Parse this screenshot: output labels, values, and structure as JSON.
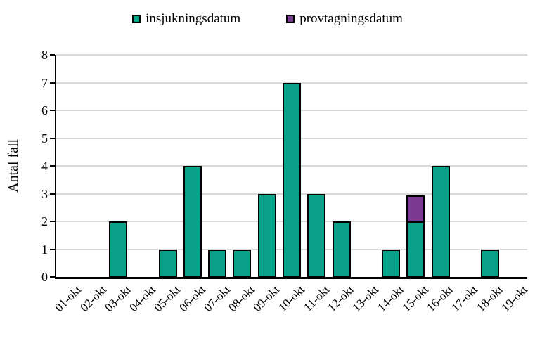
{
  "chart_data": {
    "type": "bar",
    "stacked": true,
    "title": "",
    "xlabel": "",
    "ylabel": "Antal fall",
    "ylim": [
      0,
      8
    ],
    "yticks": [
      0,
      1,
      2,
      3,
      4,
      5,
      6,
      7,
      8
    ],
    "grid": true,
    "legend_position": "top",
    "categories": [
      "01-okt",
      "02-okt",
      "03-okt",
      "04-okt",
      "05-okt",
      "06-okt",
      "07-okt",
      "08-okt",
      "09-okt",
      "10-okt",
      "11-okt",
      "12-okt",
      "13-okt",
      "14-okt",
      "15-okt",
      "16-okt",
      "17-okt",
      "18-okt",
      "19-okt"
    ],
    "series": [
      {
        "name": "insjukningsdatum",
        "color": "#09A18A",
        "values": [
          0,
          0,
          2,
          0,
          1,
          4,
          1,
          1,
          3,
          7,
          3,
          2,
          0,
          1,
          2,
          4,
          0,
          1,
          0
        ]
      },
      {
        "name": "provtagningsdatum",
        "color": "#7C3A95",
        "values": [
          0,
          0,
          0,
          0,
          0,
          0,
          0,
          0,
          0,
          0,
          0,
          0,
          0,
          0,
          1,
          0,
          0,
          0,
          0
        ]
      }
    ],
    "colors": {
      "gridline": "#d9d9d9",
      "axis": "#000000",
      "bar_outline": "#000000"
    }
  }
}
